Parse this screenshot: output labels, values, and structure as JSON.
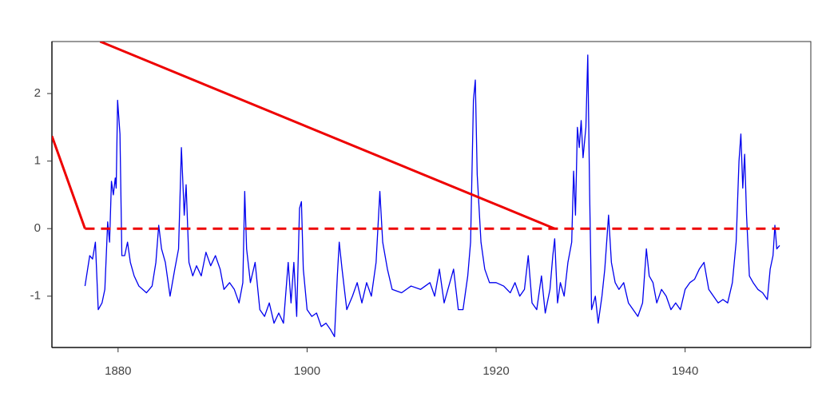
{
  "chart_data": {
    "type": "line",
    "xlim": [
      1873,
      1953.3
    ],
    "ylim": [
      -1.76,
      2.77
    ],
    "xticks": [
      1880,
      1900,
      1920,
      1940
    ],
    "yticks": [
      -1,
      0,
      1,
      2
    ],
    "grid": false,
    "series": [
      {
        "color": "#0000ee",
        "width": 1.3,
        "dashed": false,
        "x": [
          1876.5,
          1877.0,
          1877.3,
          1877.6,
          1877.9,
          1878.3,
          1878.6,
          1878.9,
          1879.1,
          1879.3,
          1879.5,
          1879.7,
          1879.8,
          1879.95,
          1880.2,
          1880.4,
          1880.7,
          1881.0,
          1881.3,
          1881.7,
          1882.2,
          1883.0,
          1883.6,
          1884.0,
          1884.3,
          1884.6,
          1885.0,
          1885.5,
          1886.0,
          1886.4,
          1886.7,
          1887.0,
          1887.2,
          1887.5,
          1887.9,
          1888.3,
          1888.8,
          1889.3,
          1889.8,
          1890.3,
          1890.8,
          1891.2,
          1891.8,
          1892.3,
          1892.8,
          1893.2,
          1893.4,
          1893.6,
          1894.0,
          1894.5,
          1895.0,
          1895.5,
          1896.0,
          1896.5,
          1897.0,
          1897.5,
          1898.0,
          1898.3,
          1898.6,
          1898.9,
          1899.2,
          1899.4,
          1899.6,
          1900.0,
          1900.5,
          1901.0,
          1901.5,
          1902.0,
          1902.5,
          1902.9,
          1903.2,
          1903.4,
          1903.7,
          1904.2,
          1904.8,
          1905.3,
          1905.8,
          1906.3,
          1906.8,
          1907.3,
          1907.7,
          1908.0,
          1908.5,
          1909.0,
          1910.0,
          1911.0,
          1912.0,
          1913.0,
          1913.5,
          1914.0,
          1914.5,
          1915.0,
          1915.5,
          1916.0,
          1916.5,
          1917.0,
          1917.3,
          1917.6,
          1917.8,
          1918.0,
          1918.4,
          1918.8,
          1919.3,
          1920.0,
          1920.8,
          1921.5,
          1922.0,
          1922.5,
          1923.0,
          1923.4,
          1923.8,
          1924.3,
          1924.8,
          1925.2,
          1925.7,
          1926.0,
          1926.2,
          1926.5,
          1926.8,
          1927.2,
          1927.6,
          1928.0,
          1928.2,
          1928.4,
          1928.6,
          1928.8,
          1929.0,
          1929.2,
          1929.5,
          1929.7,
          1929.9,
          1930.1,
          1930.5,
          1930.8,
          1931.2,
          1931.5,
          1931.9,
          1932.2,
          1932.6,
          1933.0,
          1933.5,
          1934.0,
          1934.5,
          1935.0,
          1935.5,
          1935.9,
          1936.2,
          1936.6,
          1937.0,
          1937.5,
          1938.0,
          1938.5,
          1939.0,
          1939.5,
          1940.0,
          1940.5,
          1941.0,
          1941.5,
          1942.0,
          1942.5,
          1943.0,
          1943.5,
          1944.0,
          1944.5,
          1945.0,
          1945.4,
          1945.7,
          1945.9,
          1946.1,
          1946.3,
          1946.5,
          1946.8,
          1947.2,
          1947.7,
          1948.2,
          1948.7,
          1949.0,
          1949.3,
          1949.5,
          1949.7,
          1950.0
        ],
        "values": [
          -0.85,
          -0.4,
          -0.45,
          -0.2,
          -1.2,
          -1.1,
          -0.9,
          0.1,
          -0.2,
          0.7,
          0.5,
          0.75,
          0.6,
          1.9,
          1.4,
          -0.4,
          -0.4,
          -0.2,
          -0.5,
          -0.7,
          -0.85,
          -0.95,
          -0.85,
          -0.5,
          0.05,
          -0.3,
          -0.5,
          -1.0,
          -0.6,
          -0.3,
          1.2,
          0.2,
          0.65,
          -0.5,
          -0.7,
          -0.55,
          -0.7,
          -0.35,
          -0.55,
          -0.4,
          -0.6,
          -0.9,
          -0.8,
          -0.9,
          -1.1,
          -0.8,
          0.55,
          -0.3,
          -0.8,
          -0.5,
          -1.2,
          -1.3,
          -1.1,
          -1.4,
          -1.25,
          -1.4,
          -0.5,
          -1.1,
          -0.5,
          -1.3,
          0.3,
          0.4,
          -0.6,
          -1.2,
          -1.3,
          -1.25,
          -1.45,
          -1.4,
          -1.5,
          -1.6,
          -0.7,
          -0.2,
          -0.6,
          -1.2,
          -1.0,
          -0.8,
          -1.1,
          -0.8,
          -1.0,
          -0.5,
          0.55,
          -0.2,
          -0.6,
          -0.9,
          -0.95,
          -0.85,
          -0.9,
          -0.8,
          -1.0,
          -0.6,
          -1.1,
          -0.85,
          -0.6,
          -1.2,
          -1.2,
          -0.7,
          -0.2,
          1.9,
          2.2,
          0.8,
          -0.2,
          -0.6,
          -0.8,
          -0.8,
          -0.85,
          -0.95,
          -0.8,
          -1.0,
          -0.9,
          -0.4,
          -1.1,
          -1.2,
          -0.7,
          -1.25,
          -0.9,
          -0.4,
          -0.15,
          -1.1,
          -0.8,
          -1.0,
          -0.5,
          -0.2,
          0.85,
          0.2,
          1.5,
          1.2,
          1.6,
          1.05,
          1.5,
          2.57,
          0.5,
          -1.2,
          -1.0,
          -1.4,
          -1.0,
          -0.6,
          0.2,
          -0.5,
          -0.8,
          -0.9,
          -0.8,
          -1.1,
          -1.2,
          -1.3,
          -1.1,
          -0.3,
          -0.7,
          -0.8,
          -1.1,
          -0.9,
          -1.0,
          -1.2,
          -1.1,
          -1.2,
          -0.9,
          -0.8,
          -0.75,
          -0.6,
          -0.5,
          -0.9,
          -1.0,
          -1.1,
          -1.05,
          -1.1,
          -0.8,
          -0.2,
          1.0,
          1.4,
          0.6,
          1.1,
          0.2,
          -0.7,
          -0.8,
          -0.9,
          -0.95,
          -1.05,
          -0.6,
          -0.4,
          0.05,
          -0.3,
          -0.25
        ]
      },
      {
        "color": "#ee0000",
        "width": 3,
        "dashed": false,
        "x": [
          1873,
          1876.5,
          1878.1,
          1878.1,
          1926.2
        ],
        "values": [
          1.37,
          0,
          null,
          2.77,
          0
        ]
      },
      {
        "color": "#ee0000",
        "width": 3,
        "dashed": true,
        "x": [
          1876.5,
          1950
        ],
        "values": [
          0,
          0
        ]
      }
    ]
  }
}
